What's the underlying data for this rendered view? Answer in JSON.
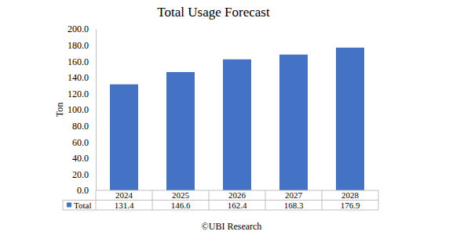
{
  "chart_data": {
    "type": "bar",
    "title": "Total Usage Forecast",
    "y_label": "Ton",
    "categories": [
      "2024",
      "2025",
      "2026",
      "2027",
      "2028"
    ],
    "series": [
      {
        "name": "Total",
        "color": "#4472c4",
        "values": [
          131.4,
          146.6,
          162.4,
          168.3,
          176.9
        ]
      }
    ],
    "ylim": [
      0,
      200
    ],
    "yticks": [
      {
        "value": 0,
        "label": "0.0"
      },
      {
        "value": 20,
        "label": "20.0"
      },
      {
        "value": 40,
        "label": "40.0"
      },
      {
        "value": 60,
        "label": "60.0"
      },
      {
        "value": 80,
        "label": "80.0"
      },
      {
        "value": 100,
        "label": "100.0"
      },
      {
        "value": 120,
        "label": "120.0"
      },
      {
        "value": 140,
        "label": "140.0"
      },
      {
        "value": 160,
        "label": "160.0"
      },
      {
        "value": 180,
        "label": "180.0"
      },
      {
        "value": 200,
        "label": "200.0"
      }
    ],
    "grid": false,
    "annotations": [
      "©UBI Research"
    ]
  }
}
